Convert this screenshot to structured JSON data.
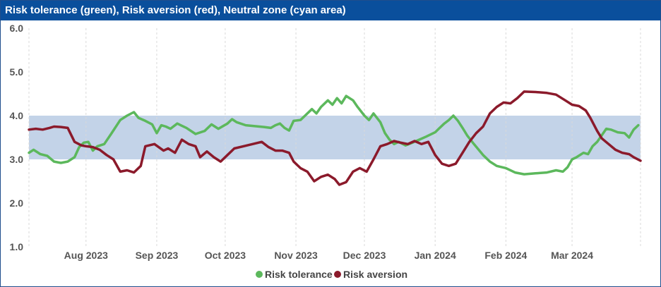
{
  "title": "Risk tolerance (green), Risk aversion (red), Neutral zone (cyan area)",
  "colors": {
    "tolerance": "#5cb85c",
    "aversion": "#8b1a2b",
    "zone": "#c3d3e8",
    "header": "#0a4f9c"
  },
  "chart_data": {
    "type": "line",
    "title": "Risk tolerance (green), Risk aversion (red), Neutral zone (cyan area)",
    "x_range": [
      "2023-07-07",
      "2024-03-31"
    ],
    "ylim": [
      1.0,
      6.0
    ],
    "y_ticks": [
      "6.0",
      "5.0",
      "4.0",
      "3.0",
      "2.0",
      "1.0"
    ],
    "x_tick_labels": [
      {
        "label": "Aug 2023",
        "date": "2023-08-01"
      },
      {
        "label": "Sep 2023",
        "date": "2023-09-01"
      },
      {
        "label": "Oct 2023",
        "date": "2023-10-01"
      },
      {
        "label": "Nov 2023",
        "date": "2023-11-01"
      },
      {
        "label": "Dec 2023",
        "date": "2023-12-01"
      },
      {
        "label": "Jan 2024",
        "date": "2024-01-01"
      },
      {
        "label": "Feb 2024",
        "date": "2024-02-01"
      },
      {
        "label": "Mar 2024",
        "date": "2024-03-01"
      }
    ],
    "neutral_zone": [
      3.0,
      4.0
    ],
    "grid": "vertical dashed",
    "legend_position": "bottom",
    "series": [
      {
        "name": "Risk tolerance",
        "color": "#5cb85c",
        "points": [
          [
            "2023-07-07",
            3.15
          ],
          [
            "2023-07-09",
            3.22
          ],
          [
            "2023-07-12",
            3.12
          ],
          [
            "2023-07-15",
            3.08
          ],
          [
            "2023-07-18",
            2.95
          ],
          [
            "2023-07-21",
            2.92
          ],
          [
            "2023-07-24",
            2.95
          ],
          [
            "2023-07-27",
            3.05
          ],
          [
            "2023-07-29",
            3.28
          ],
          [
            "2023-07-31",
            3.38
          ],
          [
            "2023-08-02",
            3.4
          ],
          [
            "2023-08-04",
            3.2
          ],
          [
            "2023-08-06",
            3.3
          ],
          [
            "2023-08-09",
            3.35
          ],
          [
            "2023-08-12",
            3.58
          ],
          [
            "2023-08-16",
            3.9
          ],
          [
            "2023-08-19",
            4.0
          ],
          [
            "2023-08-22",
            4.08
          ],
          [
            "2023-08-24",
            3.95
          ],
          [
            "2023-08-27",
            3.88
          ],
          [
            "2023-08-30",
            3.8
          ],
          [
            "2023-09-01",
            3.6
          ],
          [
            "2023-09-03",
            3.78
          ],
          [
            "2023-09-05",
            3.75
          ],
          [
            "2023-09-07",
            3.7
          ],
          [
            "2023-09-10",
            3.82
          ],
          [
            "2023-09-14",
            3.72
          ],
          [
            "2023-09-18",
            3.58
          ],
          [
            "2023-09-22",
            3.65
          ],
          [
            "2023-09-25",
            3.8
          ],
          [
            "2023-09-28",
            3.7
          ],
          [
            "2023-10-02",
            3.82
          ],
          [
            "2023-10-04",
            3.92
          ],
          [
            "2023-10-06",
            3.85
          ],
          [
            "2023-10-10",
            3.78
          ],
          [
            "2023-10-14",
            3.76
          ],
          [
            "2023-10-18",
            3.74
          ],
          [
            "2023-10-21",
            3.72
          ],
          [
            "2023-10-23",
            3.78
          ],
          [
            "2023-10-25",
            3.82
          ],
          [
            "2023-10-27",
            3.72
          ],
          [
            "2023-10-29",
            3.66
          ],
          [
            "2023-10-31",
            3.88
          ],
          [
            "2023-11-03",
            3.9
          ],
          [
            "2023-11-05",
            4.0
          ],
          [
            "2023-11-08",
            4.15
          ],
          [
            "2023-11-10",
            4.05
          ],
          [
            "2023-11-12",
            4.2
          ],
          [
            "2023-11-15",
            4.35
          ],
          [
            "2023-11-17",
            4.25
          ],
          [
            "2023-11-19",
            4.4
          ],
          [
            "2023-11-21",
            4.28
          ],
          [
            "2023-11-23",
            4.45
          ],
          [
            "2023-11-26",
            4.35
          ],
          [
            "2023-11-28",
            4.2
          ],
          [
            "2023-12-01",
            4.0
          ],
          [
            "2023-12-03",
            3.9
          ],
          [
            "2023-12-05",
            4.05
          ],
          [
            "2023-12-08",
            3.85
          ],
          [
            "2023-12-10",
            3.6
          ],
          [
            "2023-12-12",
            3.45
          ],
          [
            "2023-12-14",
            3.35
          ],
          [
            "2023-12-16",
            3.4
          ],
          [
            "2023-12-19",
            3.32
          ],
          [
            "2023-12-22",
            3.38
          ],
          [
            "2023-12-25",
            3.45
          ],
          [
            "2023-12-28",
            3.52
          ],
          [
            "2024-01-01",
            3.62
          ],
          [
            "2024-01-03",
            3.72
          ],
          [
            "2024-01-05",
            3.82
          ],
          [
            "2024-01-07",
            3.9
          ],
          [
            "2024-01-09",
            4.0
          ],
          [
            "2024-01-11",
            3.88
          ],
          [
            "2024-01-13",
            3.72
          ],
          [
            "2024-01-15",
            3.55
          ],
          [
            "2024-01-18",
            3.35
          ],
          [
            "2024-01-22",
            3.1
          ],
          [
            "2024-01-25",
            2.95
          ],
          [
            "2024-01-28",
            2.85
          ],
          [
            "2024-02-01",
            2.8
          ],
          [
            "2024-02-05",
            2.7
          ],
          [
            "2024-02-09",
            2.66
          ],
          [
            "2024-02-14",
            2.68
          ],
          [
            "2024-02-19",
            2.7
          ],
          [
            "2024-02-23",
            2.75
          ],
          [
            "2024-02-26",
            2.72
          ],
          [
            "2024-02-28",
            2.82
          ],
          [
            "2024-03-01",
            3.0
          ],
          [
            "2024-03-03",
            3.05
          ],
          [
            "2024-03-06",
            3.15
          ],
          [
            "2024-03-08",
            3.12
          ],
          [
            "2024-03-10",
            3.3
          ],
          [
            "2024-03-12",
            3.4
          ],
          [
            "2024-03-14",
            3.55
          ],
          [
            "2024-03-16",
            3.7
          ],
          [
            "2024-03-18",
            3.68
          ],
          [
            "2024-03-21",
            3.62
          ],
          [
            "2024-03-24",
            3.6
          ],
          [
            "2024-03-26",
            3.5
          ],
          [
            "2024-03-28",
            3.68
          ],
          [
            "2024-03-30",
            3.78
          ]
        ]
      },
      {
        "name": "Risk aversion",
        "color": "#8b1a2b",
        "points": [
          [
            "2023-07-07",
            3.68
          ],
          [
            "2023-07-10",
            3.7
          ],
          [
            "2023-07-13",
            3.68
          ],
          [
            "2023-07-16",
            3.72
          ],
          [
            "2023-07-18",
            3.75
          ],
          [
            "2023-07-21",
            3.74
          ],
          [
            "2023-07-24",
            3.72
          ],
          [
            "2023-07-27",
            3.4
          ],
          [
            "2023-07-30",
            3.32
          ],
          [
            "2023-08-01",
            3.3
          ],
          [
            "2023-08-04",
            3.28
          ],
          [
            "2023-08-07",
            3.22
          ],
          [
            "2023-08-10",
            3.1
          ],
          [
            "2023-08-13",
            3.0
          ],
          [
            "2023-08-16",
            2.72
          ],
          [
            "2023-08-19",
            2.75
          ],
          [
            "2023-08-22",
            2.7
          ],
          [
            "2023-08-25",
            2.85
          ],
          [
            "2023-08-27",
            3.3
          ],
          [
            "2023-08-31",
            3.35
          ],
          [
            "2023-09-04",
            3.2
          ],
          [
            "2023-09-06",
            3.25
          ],
          [
            "2023-09-09",
            3.15
          ],
          [
            "2023-09-12",
            3.45
          ],
          [
            "2023-09-15",
            3.35
          ],
          [
            "2023-09-18",
            3.3
          ],
          [
            "2023-09-20",
            3.05
          ],
          [
            "2023-09-23",
            3.18
          ],
          [
            "2023-09-26",
            3.05
          ],
          [
            "2023-09-29",
            2.95
          ],
          [
            "2023-10-02",
            3.1
          ],
          [
            "2023-10-05",
            3.25
          ],
          [
            "2023-10-09",
            3.3
          ],
          [
            "2023-10-13",
            3.35
          ],
          [
            "2023-10-17",
            3.4
          ],
          [
            "2023-10-20",
            3.28
          ],
          [
            "2023-10-23",
            3.2
          ],
          [
            "2023-10-26",
            3.2
          ],
          [
            "2023-10-29",
            3.15
          ],
          [
            "2023-10-31",
            2.95
          ],
          [
            "2023-11-03",
            2.8
          ],
          [
            "2023-11-06",
            2.72
          ],
          [
            "2023-11-09",
            2.5
          ],
          [
            "2023-11-12",
            2.6
          ],
          [
            "2023-11-15",
            2.65
          ],
          [
            "2023-11-18",
            2.55
          ],
          [
            "2023-11-20",
            2.42
          ],
          [
            "2023-11-23",
            2.48
          ],
          [
            "2023-11-26",
            2.72
          ],
          [
            "2023-11-29",
            2.8
          ],
          [
            "2023-12-02",
            2.72
          ],
          [
            "2023-12-05",
            3.0
          ],
          [
            "2023-12-08",
            3.3
          ],
          [
            "2023-12-11",
            3.35
          ],
          [
            "2023-12-14",
            3.42
          ],
          [
            "2023-12-17",
            3.38
          ],
          [
            "2023-12-20",
            3.35
          ],
          [
            "2023-12-23",
            3.42
          ],
          [
            "2023-12-26",
            3.35
          ],
          [
            "2023-12-29",
            3.4
          ],
          [
            "2024-01-01",
            3.1
          ],
          [
            "2024-01-04",
            2.9
          ],
          [
            "2024-01-07",
            2.85
          ],
          [
            "2024-01-10",
            2.9
          ],
          [
            "2024-01-13",
            3.15
          ],
          [
            "2024-01-16",
            3.4
          ],
          [
            "2024-01-19",
            3.6
          ],
          [
            "2024-01-22",
            3.75
          ],
          [
            "2024-01-25",
            4.05
          ],
          [
            "2024-01-28",
            4.2
          ],
          [
            "2024-01-31",
            4.3
          ],
          [
            "2024-02-03",
            4.28
          ],
          [
            "2024-02-06",
            4.4
          ],
          [
            "2024-02-09",
            4.55
          ],
          [
            "2024-02-14",
            4.54
          ],
          [
            "2024-02-19",
            4.52
          ],
          [
            "2024-02-23",
            4.48
          ],
          [
            "2024-02-27",
            4.35
          ],
          [
            "2024-03-01",
            4.25
          ],
          [
            "2024-03-04",
            4.22
          ],
          [
            "2024-03-07",
            4.12
          ],
          [
            "2024-03-09",
            3.95
          ],
          [
            "2024-03-12",
            3.65
          ],
          [
            "2024-03-14",
            3.48
          ],
          [
            "2024-03-17",
            3.35
          ],
          [
            "2024-03-20",
            3.22
          ],
          [
            "2024-03-23",
            3.15
          ],
          [
            "2024-03-26",
            3.12
          ],
          [
            "2024-03-28",
            3.05
          ],
          [
            "2024-03-31",
            2.97
          ]
        ]
      }
    ]
  },
  "legend": {
    "tolerance_label": "Risk tolerance",
    "aversion_label": "Risk aversion"
  }
}
